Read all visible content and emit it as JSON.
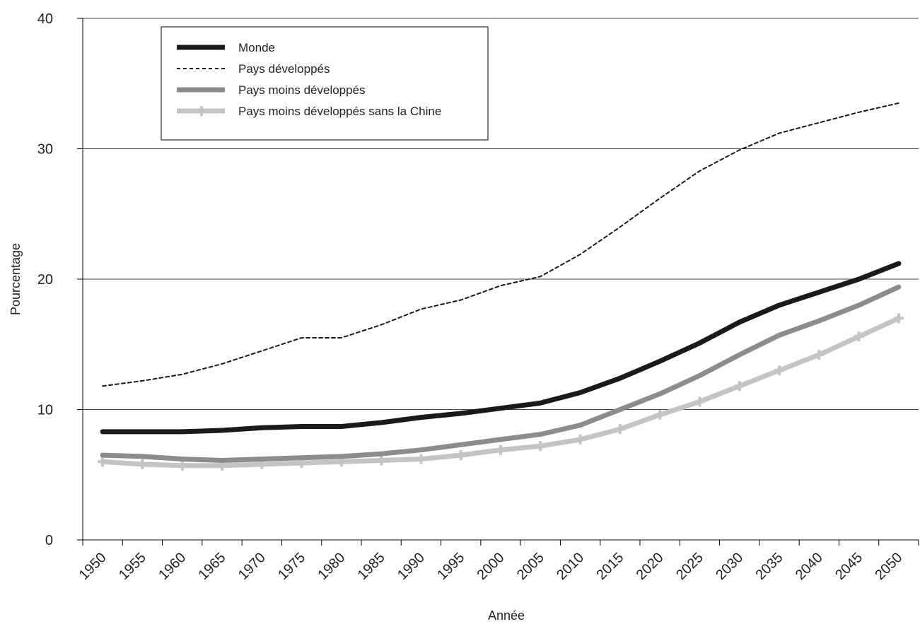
{
  "chart_data": {
    "type": "line",
    "title": "",
    "xlabel": "Année",
    "ylabel": "Pourcentage",
    "ylim": [
      0,
      40
    ],
    "yticks": [
      0,
      10,
      20,
      30,
      40
    ],
    "x": [
      "1950",
      "1955",
      "1960",
      "1965",
      "1970",
      "1975",
      "1980",
      "1985",
      "1990",
      "1995",
      "2000",
      "2005",
      "2010",
      "2015",
      "2020",
      "2025",
      "2030",
      "2035",
      "2040",
      "2045",
      "2050"
    ],
    "grid": "horizontal",
    "legend_position": "top-left",
    "series": [
      {
        "name": "Monde",
        "style": "solid-thick",
        "color": "#1a1a1a",
        "marker": "none",
        "values": [
          8.3,
          8.3,
          8.3,
          8.4,
          8.6,
          8.7,
          8.7,
          9.0,
          9.4,
          9.7,
          10.1,
          10.5,
          11.3,
          12.4,
          13.7,
          15.1,
          16.7,
          18.0,
          19.0,
          20.0,
          21.2
        ]
      },
      {
        "name": "Pays développés",
        "style": "dashed",
        "color": "#1a1a1a",
        "marker": "none",
        "values": [
          11.8,
          12.2,
          12.7,
          13.5,
          14.5,
          15.5,
          15.5,
          16.5,
          17.7,
          18.4,
          19.5,
          20.2,
          21.9,
          24.0,
          26.2,
          28.3,
          29.9,
          31.2,
          32.0,
          32.8,
          33.5
        ]
      },
      {
        "name": "Pays moins développés",
        "style": "solid-thick",
        "color": "#8c8c8c",
        "marker": "none",
        "values": [
          6.5,
          6.4,
          6.2,
          6.1,
          6.2,
          6.3,
          6.4,
          6.6,
          6.9,
          7.3,
          7.7,
          8.1,
          8.8,
          10.0,
          11.2,
          12.6,
          14.2,
          15.7,
          16.8,
          18.0,
          19.4
        ]
      },
      {
        "name": "Pays moins développés sans la Chine",
        "style": "solid-thick",
        "color": "#c4c4c4",
        "marker": "plus",
        "values": [
          6.0,
          5.8,
          5.7,
          5.7,
          5.8,
          5.9,
          6.0,
          6.1,
          6.2,
          6.5,
          6.9,
          7.2,
          7.7,
          8.5,
          9.6,
          10.6,
          11.8,
          13.0,
          14.2,
          15.6,
          17.0
        ]
      }
    ]
  }
}
